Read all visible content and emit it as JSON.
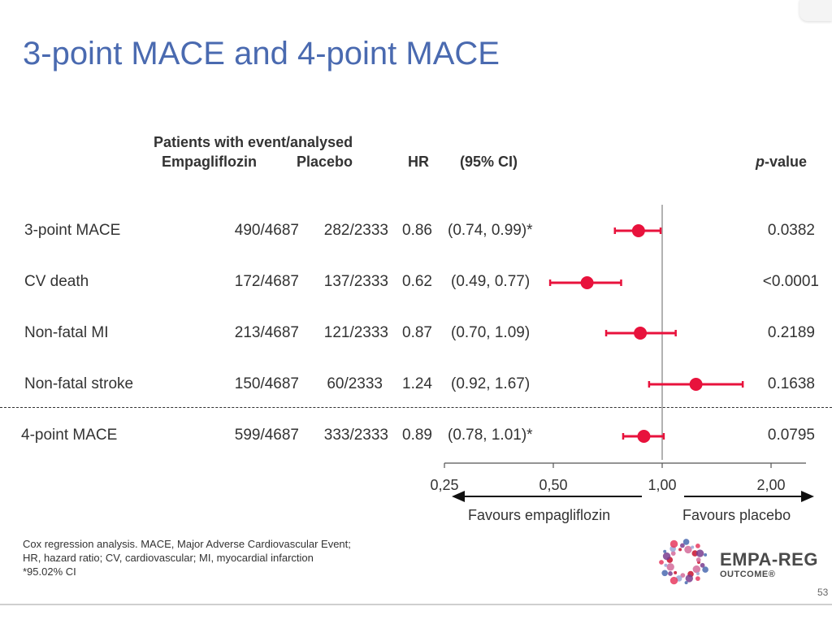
{
  "slide": {
    "title": "3-point MACE and 4-point MACE",
    "page_number": "53"
  },
  "headers": {
    "patients": "Patients with event/analysed",
    "empagliflozin": "Empagliflozin",
    "placebo": "Placebo",
    "hr": "HR",
    "ci": "(95% CI)",
    "p_italic": "p",
    "p_rest": "-value"
  },
  "chart_data": {
    "type": "forest",
    "x_scale": "log",
    "x_ticks": [
      0.25,
      0.5,
      1.0,
      2.0
    ],
    "x_tick_labels": [
      "0,25",
      "0,50",
      "1,00",
      "2,00"
    ],
    "reference_line": 1.0,
    "favours_left": "Favours empagliflozin",
    "favours_right": "Favours placebo",
    "rows": [
      {
        "label": "3-point MACE",
        "empa": "490/4687",
        "placebo": "282/2333",
        "hr_text": "0.86",
        "ci_text": "(0.74, 0.99)*",
        "p": "0.0382",
        "hr": 0.86,
        "lo": 0.74,
        "hi": 0.99
      },
      {
        "label": "CV death",
        "empa": "172/4687",
        "placebo": "137/2333",
        "hr_text": "0.62",
        "ci_text": "(0.49, 0.77)",
        "p": "<0.0001",
        "hr": 0.62,
        "lo": 0.49,
        "hi": 0.77
      },
      {
        "label": "Non-fatal MI",
        "empa": "213/4687",
        "placebo": "121/2333",
        "hr_text": "0.87",
        "ci_text": "(0.70, 1.09)",
        "p": "0.2189",
        "hr": 0.87,
        "lo": 0.7,
        "hi": 1.09
      },
      {
        "label": "Non-fatal stroke",
        "empa": "150/4687",
        "placebo": "60/2333",
        "hr_text": "1.24",
        "ci_text": "(0.92, 1.67)",
        "p": "0.1638",
        "hr": 1.24,
        "lo": 0.92,
        "hi": 1.67
      },
      {
        "label": "4-point MACE",
        "empa": "599/4687",
        "placebo": "333/2333",
        "hr_text": "0.89",
        "ci_text": "(0.78, 1.01)*",
        "p": "0.0795",
        "hr": 0.89,
        "lo": 0.78,
        "hi": 1.01
      }
    ],
    "colors": {
      "marker": "#e8123c",
      "reference": "#999999",
      "axis": "#555555"
    }
  },
  "footnotes": [
    "Cox regression analysis. MACE, Major Adverse Cardiovascular Event;",
    "HR, hazard ratio; CV, cardiovascular; MI, myocardial infarction",
    "*95.02% CI"
  ],
  "logo": {
    "title": "EMPA-REG",
    "subtitle": "OUTCOME®"
  }
}
